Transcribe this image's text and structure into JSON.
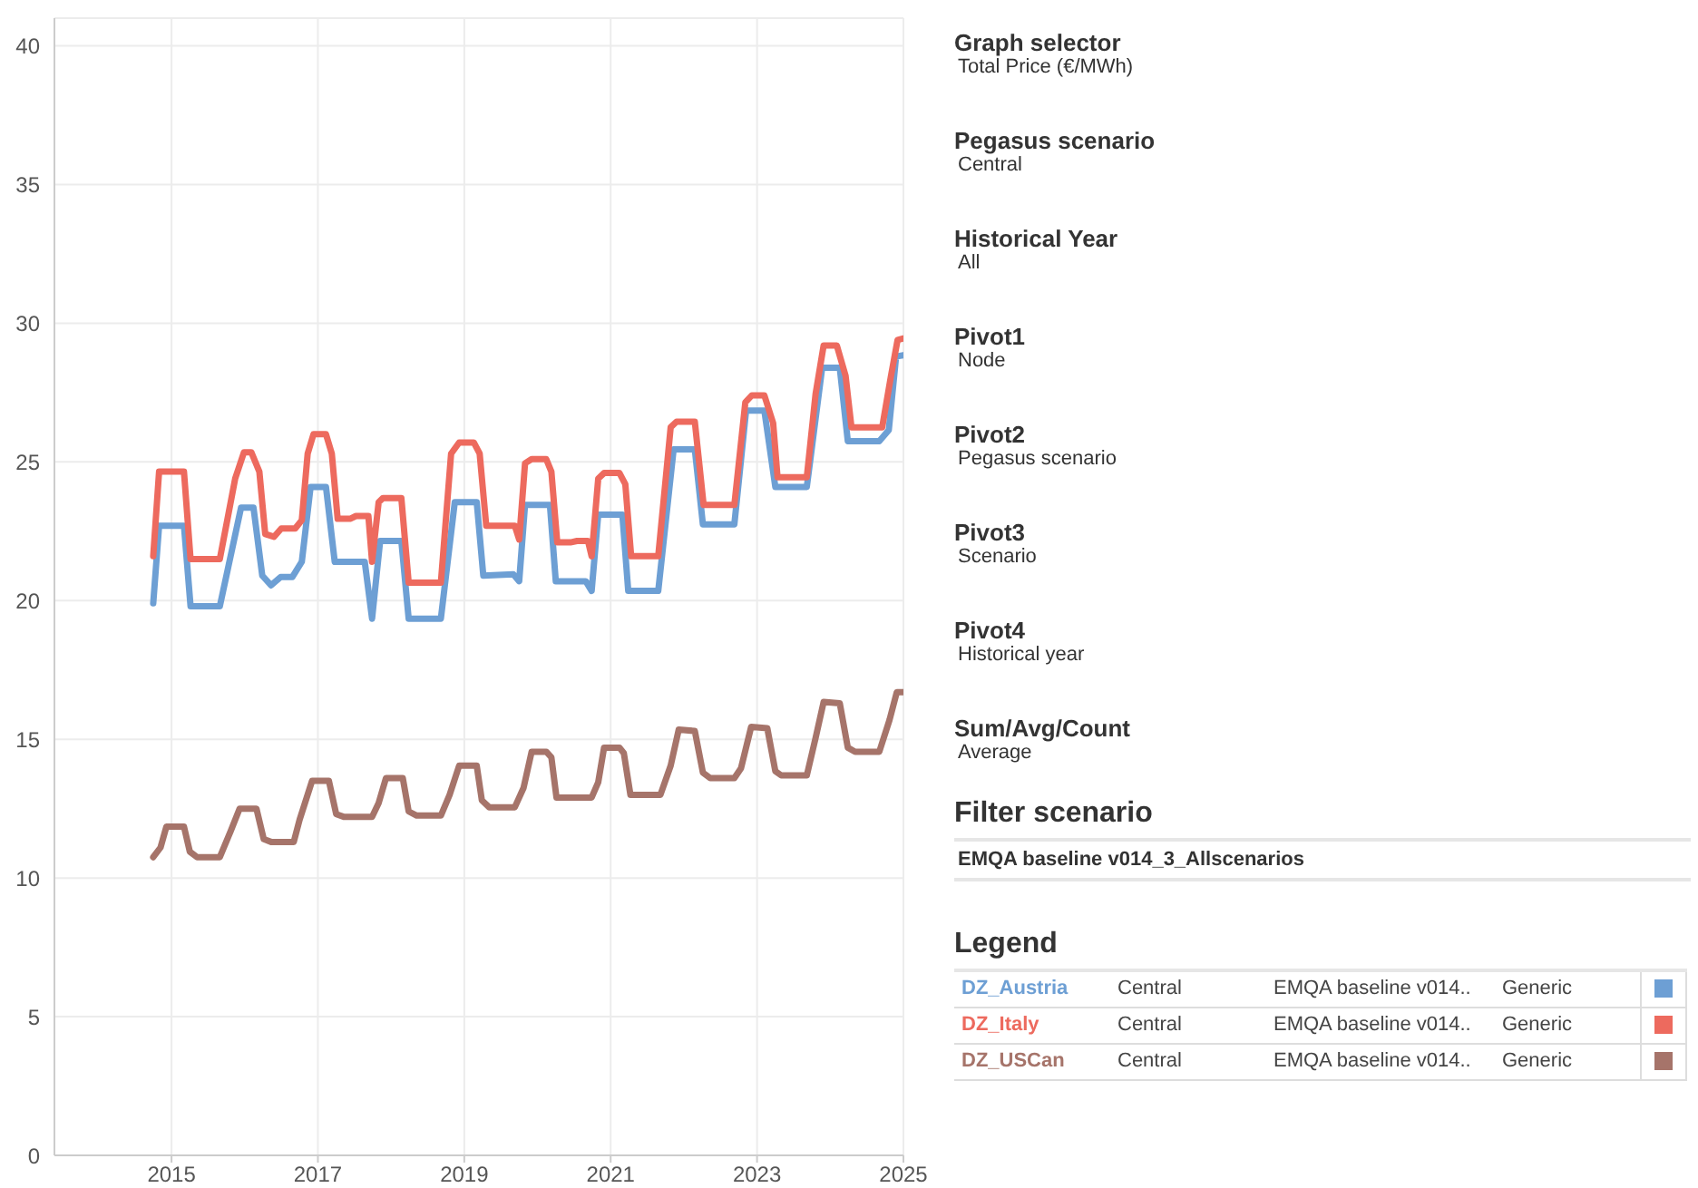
{
  "chart_data": {
    "type": "line",
    "legend_title": "Legend",
    "legend": "right",
    "grid": true,
    "marker": "none",
    "line_style": "solid",
    "xlim": [
      2013.4,
      2025
    ],
    "xticks": [
      2015,
      2017,
      2019,
      2021,
      2023,
      2025
    ],
    "ylim": [
      0,
      41
    ],
    "yticks": [
      0,
      5,
      10,
      15,
      20,
      25,
      30,
      35,
      40
    ],
    "annotations": [
      "Graph selector",
      "Total Price (€/MWh)",
      "Pegasus scenario",
      "Central",
      "Historical Year",
      "All",
      "Pivot1",
      "Node",
      "Pivot2",
      "Pegasus scenario",
      "Pivot3",
      "Scenario",
      "Pivot4",
      "Historical year",
      "Sum/Avg/Count",
      "Average",
      "Filter scenario",
      "EMQA baseline v014_3_Allscenarios",
      "Central",
      "EMQA baseline v014..",
      "Generic",
      "Central",
      "EMQA baseline v014..",
      "Generic",
      "Central",
      "EMQA baseline v014..",
      "Generic"
    ],
    "series": [
      {
        "name": "DZ_Austria",
        "color": "#6d9fd4",
        "x": [
          2014.75,
          2014.83,
          2015.17,
          2015.26,
          2015.66,
          2015.95,
          2016.12,
          2016.24,
          2016.36,
          2016.49,
          2016.65,
          2016.78,
          2016.9,
          2017.11,
          2017.23,
          2017.64,
          2017.74,
          2017.85,
          2018.14,
          2018.24,
          2018.68,
          2018.87,
          2019.17,
          2019.26,
          2019.67,
          2019.75,
          2019.83,
          2020.17,
          2020.25,
          2020.66,
          2020.74,
          2020.83,
          2021.16,
          2021.24,
          2021.65,
          2021.86,
          2022.15,
          2022.26,
          2022.69,
          2022.85,
          2023.1,
          2023.25,
          2023.68,
          2023.89,
          2024.13,
          2024.24,
          2024.67,
          2024.8,
          2024.9,
          2025.0
        ],
        "values": [
          19.9,
          22.7,
          22.7,
          19.8,
          19.8,
          23.35,
          23.35,
          20.9,
          20.55,
          20.85,
          20.85,
          21.4,
          24.1,
          24.1,
          21.4,
          21.4,
          19.35,
          22.15,
          22.15,
          19.35,
          19.35,
          23.55,
          23.55,
          20.9,
          20.95,
          20.7,
          23.45,
          23.45,
          20.7,
          20.7,
          20.35,
          23.1,
          23.1,
          20.35,
          20.35,
          25.45,
          25.45,
          22.75,
          22.75,
          26.85,
          26.85,
          24.1,
          24.1,
          28.4,
          28.4,
          25.75,
          25.75,
          26.15,
          28.8,
          28.85
        ]
      },
      {
        "name": "DZ_Italy",
        "color": "#ed6a5e",
        "x": [
          2014.75,
          2014.83,
          2015.17,
          2015.26,
          2015.66,
          2015.87,
          2015.99,
          2016.09,
          2016.2,
          2016.28,
          2016.4,
          2016.5,
          2016.69,
          2016.78,
          2016.86,
          2016.94,
          2017.11,
          2017.19,
          2017.27,
          2017.44,
          2017.52,
          2017.69,
          2017.74,
          2017.83,
          2017.89,
          2018.14,
          2018.24,
          2018.68,
          2018.82,
          2018.93,
          2019.13,
          2019.21,
          2019.3,
          2019.69,
          2019.75,
          2019.83,
          2019.92,
          2020.12,
          2020.19,
          2020.27,
          2020.45,
          2020.54,
          2020.69,
          2020.74,
          2020.83,
          2020.91,
          2021.12,
          2021.2,
          2021.28,
          2021.49,
          2021.65,
          2021.82,
          2021.9,
          2022.15,
          2022.27,
          2022.69,
          2022.84,
          2022.93,
          2023.1,
          2023.22,
          2023.28,
          2023.68,
          2023.8,
          2023.91,
          2024.09,
          2024.21,
          2024.29,
          2024.71,
          2024.83,
          2024.92,
          2025.0
        ],
        "values": [
          21.6,
          24.65,
          24.65,
          21.5,
          21.5,
          24.4,
          25.35,
          25.35,
          24.65,
          22.4,
          22.3,
          22.6,
          22.6,
          22.9,
          25.3,
          26.0,
          26.0,
          25.3,
          22.95,
          22.95,
          23.05,
          23.05,
          21.4,
          23.55,
          23.7,
          23.7,
          20.65,
          20.65,
          25.3,
          25.7,
          25.7,
          25.3,
          22.7,
          22.7,
          22.2,
          24.95,
          25.1,
          25.1,
          24.65,
          22.1,
          22.1,
          22.15,
          22.15,
          21.6,
          24.4,
          24.6,
          24.6,
          24.2,
          21.6,
          21.6,
          21.6,
          26.25,
          26.45,
          26.45,
          23.45,
          23.45,
          27.15,
          27.4,
          27.4,
          26.4,
          24.45,
          24.45,
          27.45,
          29.2,
          29.2,
          28.1,
          26.25,
          26.25,
          28.1,
          29.4,
          29.45
        ]
      },
      {
        "name": "DZ_USCan",
        "color": "#a6746a",
        "x": [
          2014.75,
          2014.85,
          2014.93,
          2015.17,
          2015.25,
          2015.35,
          2015.66,
          2015.81,
          2015.93,
          2016.16,
          2016.26,
          2016.36,
          2016.67,
          2016.75,
          2016.92,
          2017.15,
          2017.25,
          2017.36,
          2017.74,
          2017.83,
          2017.93,
          2018.16,
          2018.24,
          2018.35,
          2018.68,
          2018.8,
          2018.93,
          2019.17,
          2019.24,
          2019.34,
          2019.69,
          2019.81,
          2019.92,
          2020.12,
          2020.19,
          2020.26,
          2020.74,
          2020.83,
          2020.91,
          2021.12,
          2021.18,
          2021.27,
          2021.68,
          2021.82,
          2021.93,
          2022.15,
          2022.26,
          2022.36,
          2022.69,
          2022.78,
          2022.92,
          2023.14,
          2023.25,
          2023.33,
          2023.68,
          2023.8,
          2023.91,
          2024.13,
          2024.24,
          2024.34,
          2024.67,
          2024.81,
          2024.91,
          2025.0
        ],
        "values": [
          10.75,
          11.1,
          11.85,
          11.85,
          10.95,
          10.75,
          10.75,
          11.7,
          12.5,
          12.5,
          11.4,
          11.3,
          11.3,
          12.1,
          13.5,
          13.5,
          12.3,
          12.2,
          12.2,
          12.7,
          13.6,
          13.6,
          12.4,
          12.25,
          12.25,
          13.0,
          14.05,
          14.05,
          12.8,
          12.55,
          12.55,
          13.25,
          14.55,
          14.55,
          14.35,
          12.9,
          12.9,
          13.45,
          14.7,
          14.7,
          14.5,
          13.0,
          13.0,
          14.05,
          15.35,
          15.3,
          13.8,
          13.6,
          13.6,
          13.95,
          15.45,
          15.4,
          13.85,
          13.7,
          13.7,
          15.05,
          16.35,
          16.3,
          14.7,
          14.55,
          14.55,
          15.7,
          16.7,
          16.7
        ]
      }
    ]
  }
}
